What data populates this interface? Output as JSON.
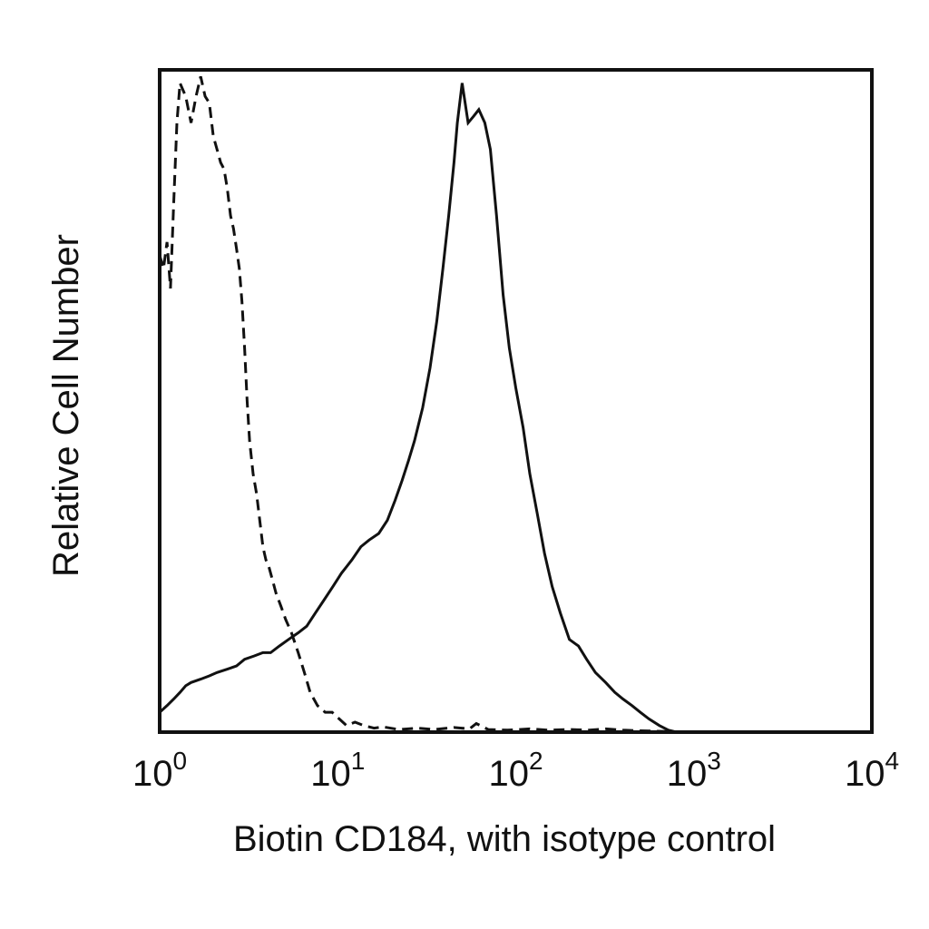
{
  "chart_data": {
    "type": "line",
    "title": "",
    "xlabel": "Biotin CD184, with isotype control",
    "ylabel": "Relative Cell Number",
    "x_scale": "log",
    "xlim": [
      1,
      10000
    ],
    "ylim": [
      0,
      100
    ],
    "grid": false,
    "legend": "none",
    "x_ticks": [
      {
        "base": "10",
        "exp": "0"
      },
      {
        "base": "10",
        "exp": "1"
      },
      {
        "base": "10",
        "exp": "2"
      },
      {
        "base": "10",
        "exp": "3"
      },
      {
        "base": "10",
        "exp": "4"
      }
    ],
    "series": [
      {
        "style": "solid",
        "color": "#111111",
        "points": [
          [
            1.0,
            3
          ],
          [
            1.1,
            4
          ],
          [
            1.2,
            5
          ],
          [
            1.3,
            6
          ],
          [
            1.4,
            7
          ],
          [
            1.5,
            7.5
          ],
          [
            1.7,
            8
          ],
          [
            1.9,
            8.5
          ],
          [
            2.1,
            9
          ],
          [
            2.4,
            9.5
          ],
          [
            2.7,
            10
          ],
          [
            3.0,
            11
          ],
          [
            3.4,
            11.5
          ],
          [
            3.8,
            12
          ],
          [
            4.2,
            12
          ],
          [
            4.7,
            13
          ],
          [
            5.3,
            14
          ],
          [
            6.0,
            15
          ],
          [
            6.7,
            16
          ],
          [
            7.5,
            18
          ],
          [
            8.4,
            20
          ],
          [
            9.4,
            22
          ],
          [
            10.5,
            24
          ],
          [
            12,
            26
          ],
          [
            13.5,
            28
          ],
          [
            15,
            29
          ],
          [
            17,
            30
          ],
          [
            19,
            32
          ],
          [
            21,
            35
          ],
          [
            23,
            38
          ],
          [
            25,
            41
          ],
          [
            27,
            44
          ],
          [
            30,
            49
          ],
          [
            33,
            55
          ],
          [
            36,
            62
          ],
          [
            39,
            70
          ],
          [
            42,
            78
          ],
          [
            45,
            86
          ],
          [
            47,
            92
          ],
          [
            50,
            98
          ],
          [
            54,
            92
          ],
          [
            58,
            93
          ],
          [
            62,
            94
          ],
          [
            67,
            92
          ],
          [
            72,
            88
          ],
          [
            78,
            78
          ],
          [
            85,
            66
          ],
          [
            92,
            58
          ],
          [
            100,
            52
          ],
          [
            110,
            46
          ],
          [
            120,
            39
          ],
          [
            132,
            33
          ],
          [
            145,
            27
          ],
          [
            160,
            22
          ],
          [
            178,
            18
          ],
          [
            200,
            14
          ],
          [
            225,
            13
          ],
          [
            250,
            11
          ],
          [
            280,
            9
          ],
          [
            320,
            7.5
          ],
          [
            360,
            6
          ],
          [
            400,
            5
          ],
          [
            450,
            4
          ],
          [
            500,
            3
          ],
          [
            560,
            2
          ],
          [
            640,
            1
          ],
          [
            720,
            0.3
          ],
          [
            800,
            0
          ],
          [
            1000,
            0
          ],
          [
            10000,
            0
          ]
        ]
      },
      {
        "style": "dashed",
        "color": "#111111",
        "points": [
          [
            1.0,
            72
          ],
          [
            1.05,
            70
          ],
          [
            1.1,
            74
          ],
          [
            1.15,
            67
          ],
          [
            1.2,
            80
          ],
          [
            1.25,
            92
          ],
          [
            1.3,
            98
          ],
          [
            1.4,
            96
          ],
          [
            1.5,
            92
          ],
          [
            1.6,
            96
          ],
          [
            1.7,
            99
          ],
          [
            1.8,
            96
          ],
          [
            1.9,
            95
          ],
          [
            2.0,
            90
          ],
          [
            2.1,
            88
          ],
          [
            2.2,
            86
          ],
          [
            2.3,
            85
          ],
          [
            2.4,
            82
          ],
          [
            2.5,
            78
          ],
          [
            2.6,
            76
          ],
          [
            2.7,
            73
          ],
          [
            2.8,
            70
          ],
          [
            2.9,
            65
          ],
          [
            3.0,
            58
          ],
          [
            3.1,
            50
          ],
          [
            3.2,
            44
          ],
          [
            3.35,
            39
          ],
          [
            3.5,
            36
          ],
          [
            3.65,
            32
          ],
          [
            3.8,
            28
          ],
          [
            3.95,
            26
          ],
          [
            4.1,
            25
          ],
          [
            4.3,
            23
          ],
          [
            4.5,
            21
          ],
          [
            4.8,
            19
          ],
          [
            5.1,
            17
          ],
          [
            5.5,
            15
          ],
          [
            6.0,
            12
          ],
          [
            6.5,
            9
          ],
          [
            7.0,
            6
          ],
          [
            7.7,
            4
          ],
          [
            8.5,
            3
          ],
          [
            9.3,
            3
          ],
          [
            10.2,
            2
          ],
          [
            11.2,
            1
          ],
          [
            12.5,
            1.5
          ],
          [
            14,
            1
          ],
          [
            16,
            0.6
          ],
          [
            18,
            0.8
          ],
          [
            22,
            0.4
          ],
          [
            28,
            0.6
          ],
          [
            35,
            0.4
          ],
          [
            45,
            0.7
          ],
          [
            55,
            0.5
          ],
          [
            60,
            1.3
          ],
          [
            70,
            0.4
          ],
          [
            90,
            0.3
          ],
          [
            120,
            0.5
          ],
          [
            150,
            0.3
          ],
          [
            200,
            0.4
          ],
          [
            260,
            0.3
          ],
          [
            320,
            0.5
          ],
          [
            400,
            0.3
          ],
          [
            500,
            0.2
          ],
          [
            1000,
            0
          ],
          [
            10000,
            0
          ]
        ]
      }
    ]
  }
}
